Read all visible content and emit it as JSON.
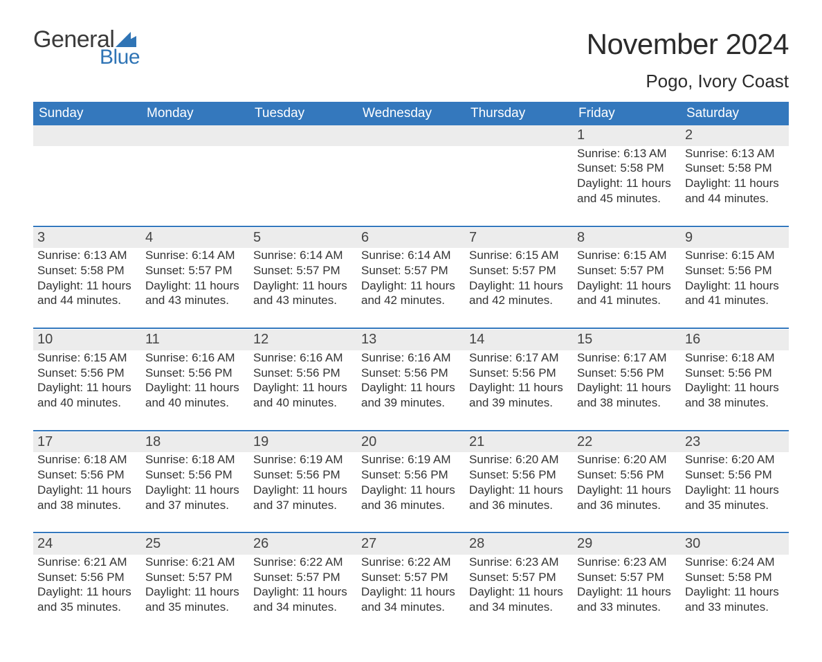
{
  "logo": {
    "word1": "General",
    "word2": "Blue",
    "mark_color": "#2f74b5"
  },
  "title": "November 2024",
  "location": "Pogo, Ivory Coast",
  "colors": {
    "header_bg": "#3478bd",
    "header_text": "#ffffff",
    "daynum_bg": "#ececec",
    "rule": "#3478bd",
    "text": "#333333",
    "page_bg": "#ffffff"
  },
  "typography": {
    "title_fontsize": 42,
    "location_fontsize": 26,
    "header_fontsize": 19,
    "daynum_fontsize": 20,
    "body_fontsize": 17
  },
  "day_headers": [
    "Sunday",
    "Monday",
    "Tuesday",
    "Wednesday",
    "Thursday",
    "Friday",
    "Saturday"
  ],
  "labels": {
    "sunrise": "Sunrise:",
    "sunset": "Sunset:",
    "daylight": "Daylight:"
  },
  "weeks": [
    [
      null,
      null,
      null,
      null,
      null,
      {
        "day": 1,
        "sunrise": "6:13 AM",
        "sunset": "5:58 PM",
        "daylight": "11 hours and 45 minutes."
      },
      {
        "day": 2,
        "sunrise": "6:13 AM",
        "sunset": "5:58 PM",
        "daylight": "11 hours and 44 minutes."
      }
    ],
    [
      {
        "day": 3,
        "sunrise": "6:13 AM",
        "sunset": "5:58 PM",
        "daylight": "11 hours and 44 minutes."
      },
      {
        "day": 4,
        "sunrise": "6:14 AM",
        "sunset": "5:57 PM",
        "daylight": "11 hours and 43 minutes."
      },
      {
        "day": 5,
        "sunrise": "6:14 AM",
        "sunset": "5:57 PM",
        "daylight": "11 hours and 43 minutes."
      },
      {
        "day": 6,
        "sunrise": "6:14 AM",
        "sunset": "5:57 PM",
        "daylight": "11 hours and 42 minutes."
      },
      {
        "day": 7,
        "sunrise": "6:15 AM",
        "sunset": "5:57 PM",
        "daylight": "11 hours and 42 minutes."
      },
      {
        "day": 8,
        "sunrise": "6:15 AM",
        "sunset": "5:57 PM",
        "daylight": "11 hours and 41 minutes."
      },
      {
        "day": 9,
        "sunrise": "6:15 AM",
        "sunset": "5:56 PM",
        "daylight": "11 hours and 41 minutes."
      }
    ],
    [
      {
        "day": 10,
        "sunrise": "6:15 AM",
        "sunset": "5:56 PM",
        "daylight": "11 hours and 40 minutes."
      },
      {
        "day": 11,
        "sunrise": "6:16 AM",
        "sunset": "5:56 PM",
        "daylight": "11 hours and 40 minutes."
      },
      {
        "day": 12,
        "sunrise": "6:16 AM",
        "sunset": "5:56 PM",
        "daylight": "11 hours and 40 minutes."
      },
      {
        "day": 13,
        "sunrise": "6:16 AM",
        "sunset": "5:56 PM",
        "daylight": "11 hours and 39 minutes."
      },
      {
        "day": 14,
        "sunrise": "6:17 AM",
        "sunset": "5:56 PM",
        "daylight": "11 hours and 39 minutes."
      },
      {
        "day": 15,
        "sunrise": "6:17 AM",
        "sunset": "5:56 PM",
        "daylight": "11 hours and 38 minutes."
      },
      {
        "day": 16,
        "sunrise": "6:18 AM",
        "sunset": "5:56 PM",
        "daylight": "11 hours and 38 minutes."
      }
    ],
    [
      {
        "day": 17,
        "sunrise": "6:18 AM",
        "sunset": "5:56 PM",
        "daylight": "11 hours and 38 minutes."
      },
      {
        "day": 18,
        "sunrise": "6:18 AM",
        "sunset": "5:56 PM",
        "daylight": "11 hours and 37 minutes."
      },
      {
        "day": 19,
        "sunrise": "6:19 AM",
        "sunset": "5:56 PM",
        "daylight": "11 hours and 37 minutes."
      },
      {
        "day": 20,
        "sunrise": "6:19 AM",
        "sunset": "5:56 PM",
        "daylight": "11 hours and 36 minutes."
      },
      {
        "day": 21,
        "sunrise": "6:20 AM",
        "sunset": "5:56 PM",
        "daylight": "11 hours and 36 minutes."
      },
      {
        "day": 22,
        "sunrise": "6:20 AM",
        "sunset": "5:56 PM",
        "daylight": "11 hours and 36 minutes."
      },
      {
        "day": 23,
        "sunrise": "6:20 AM",
        "sunset": "5:56 PM",
        "daylight": "11 hours and 35 minutes."
      }
    ],
    [
      {
        "day": 24,
        "sunrise": "6:21 AM",
        "sunset": "5:56 PM",
        "daylight": "11 hours and 35 minutes."
      },
      {
        "day": 25,
        "sunrise": "6:21 AM",
        "sunset": "5:57 PM",
        "daylight": "11 hours and 35 minutes."
      },
      {
        "day": 26,
        "sunrise": "6:22 AM",
        "sunset": "5:57 PM",
        "daylight": "11 hours and 34 minutes."
      },
      {
        "day": 27,
        "sunrise": "6:22 AM",
        "sunset": "5:57 PM",
        "daylight": "11 hours and 34 minutes."
      },
      {
        "day": 28,
        "sunrise": "6:23 AM",
        "sunset": "5:57 PM",
        "daylight": "11 hours and 34 minutes."
      },
      {
        "day": 29,
        "sunrise": "6:23 AM",
        "sunset": "5:57 PM",
        "daylight": "11 hours and 33 minutes."
      },
      {
        "day": 30,
        "sunrise": "6:24 AM",
        "sunset": "5:58 PM",
        "daylight": "11 hours and 33 minutes."
      }
    ]
  ]
}
